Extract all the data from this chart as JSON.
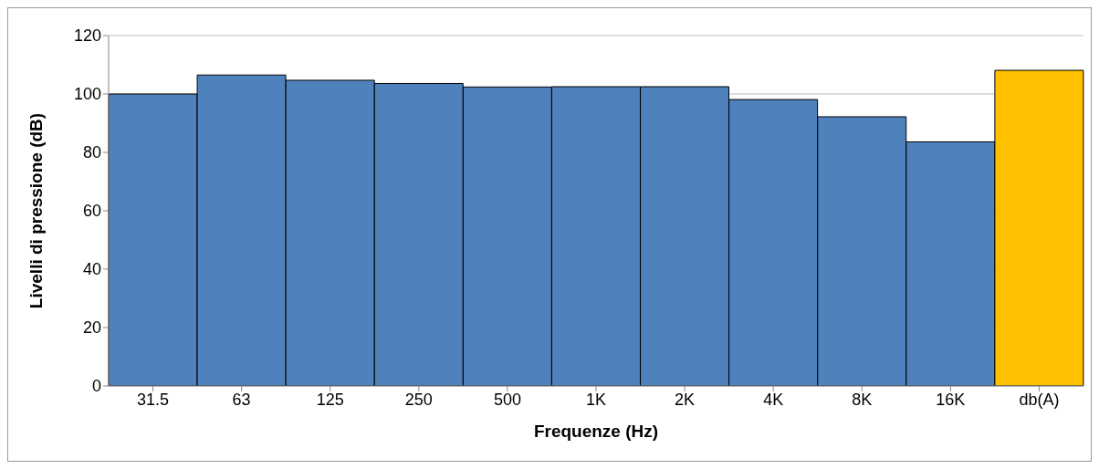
{
  "chart_data": {
    "type": "bar",
    "xlabel": "Frequenze (Hz)",
    "ylabel": "Livelli di pressione (dB)",
    "categories": [
      "31.5",
      "63",
      "125",
      "250",
      "500",
      "1K",
      "2K",
      "4K",
      "8K",
      "16K",
      "db(A)"
    ],
    "values": [
      100,
      106.5,
      104.7,
      103.6,
      102.4,
      102.5,
      102.5,
      98.1,
      92.2,
      83.6,
      108.1
    ],
    "colors": [
      "#4f81bd",
      "#4f81bd",
      "#4f81bd",
      "#4f81bd",
      "#4f81bd",
      "#4f81bd",
      "#4f81bd",
      "#4f81bd",
      "#4f81bd",
      "#4f81bd",
      "#ffc000"
    ],
    "ylim": [
      0,
      120
    ],
    "yticks": [
      0,
      20,
      40,
      60,
      80,
      100,
      120
    ],
    "grid": "y",
    "legend": false
  }
}
